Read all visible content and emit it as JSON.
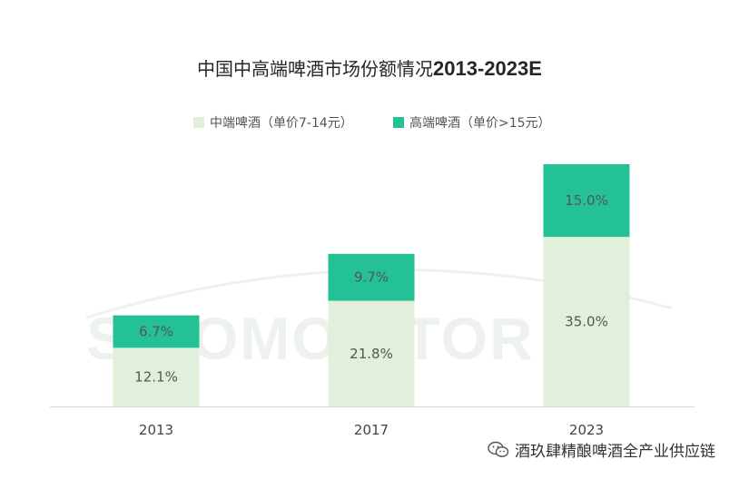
{
  "title": {
    "text": "中国中高端啤酒市场份额情况",
    "range": "2013-2023E"
  },
  "watermark": "SINOMONITOR",
  "footer": {
    "text": "酒玖肆精酿啤酒全产业供应链",
    "icon": "wechat-icon"
  },
  "colors": {
    "mid": "#e2efdb",
    "high": "#24c196",
    "axis": "#d9d9d9",
    "label": "#555555"
  },
  "chart_data": {
    "type": "bar",
    "stacked": true,
    "categories": [
      "2013",
      "2017",
      "2023"
    ],
    "series": [
      {
        "name": "中端啤酒（单价7-14元）",
        "values": [
          12.1,
          21.8,
          35.0
        ],
        "labels": [
          "12.1%",
          "21.8%",
          "35.0%"
        ],
        "color": "#e2efdb"
      },
      {
        "name": "高端啤酒（单价>15元）",
        "values": [
          6.7,
          9.7,
          15.0
        ],
        "labels": [
          "6.7%",
          "9.7%",
          "15.0%"
        ],
        "color": "#24c196"
      }
    ],
    "title": "中国中高端啤酒市场份额情况2013-2023E",
    "legend": "top-center",
    "grid": false
  }
}
